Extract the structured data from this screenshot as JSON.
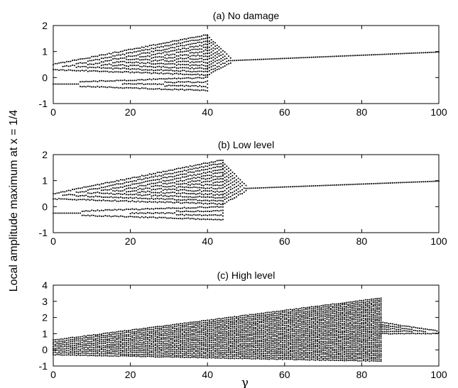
{
  "figure": {
    "ylabel": "Local amplitude maximum at x = 1/4",
    "xlabel": "γ"
  },
  "chart_data": [
    {
      "type": "scatter",
      "title": "(a) No damage",
      "xlim": [
        0,
        100
      ],
      "ylim": [
        -1,
        2
      ],
      "xticks": [
        0,
        20,
        40,
        60,
        80,
        100
      ],
      "yticks": [
        -1,
        0,
        1,
        2
      ],
      "grid": false,
      "legend": "none",
      "regions": [
        {
          "x_from": 0,
          "x_to": 40,
          "upper_from": [
            0.3,
            0.5
          ],
          "upper_to": [
            0.1,
            1.65
          ],
          "lower_from": [
            -0.3,
            -0.2
          ],
          "lower_to": [
            -0.5,
            0.0
          ]
        },
        {
          "x_from": 40,
          "x_to": 46,
          "upper_from": [
            0.1,
            1.6
          ],
          "upper_to": [
            0.55,
            0.75
          ]
        },
        {
          "x_from": 46,
          "x_to": 100,
          "upper_from": [
            0.65,
            0.65
          ],
          "upper_to": [
            0.98,
            0.98
          ]
        }
      ]
    },
    {
      "type": "scatter",
      "title": "(b) Low level",
      "xlim": [
        0,
        100
      ],
      "ylim": [
        -1,
        2
      ],
      "xticks": [
        0,
        20,
        40,
        60,
        80,
        100
      ],
      "yticks": [
        -1,
        0,
        1,
        2
      ],
      "grid": false,
      "legend": "none",
      "regions": [
        {
          "x_from": 0,
          "x_to": 44,
          "upper_from": [
            0.3,
            0.5
          ],
          "upper_to": [
            0.1,
            1.8
          ],
          "lower_from": [
            -0.3,
            -0.2
          ],
          "lower_to": [
            -0.5,
            0.0
          ]
        },
        {
          "x_from": 44,
          "x_to": 50,
          "upper_from": [
            0.1,
            1.7
          ],
          "upper_to": [
            0.6,
            0.8
          ]
        },
        {
          "x_from": 50,
          "x_to": 100,
          "upper_from": [
            0.7,
            0.7
          ],
          "upper_to": [
            0.98,
            0.98
          ]
        }
      ]
    },
    {
      "type": "scatter",
      "title": "(c) High level",
      "xlim": [
        0,
        100
      ],
      "ylim": [
        -1,
        4
      ],
      "xticks": [
        0,
        20,
        40,
        60,
        80,
        100
      ],
      "yticks": [
        -1,
        0,
        1,
        2,
        3,
        4
      ],
      "grid": false,
      "legend": "none",
      "regions": [
        {
          "x_from": 0,
          "x_to": 85,
          "upper_from": [
            -0.3,
            0.6
          ],
          "upper_to": [
            -0.7,
            3.2
          ]
        },
        {
          "x_from": 85,
          "x_to": 100,
          "upper_from": [
            1.0,
            1.7
          ],
          "upper_to": [
            1.0,
            1.15
          ]
        }
      ]
    }
  ]
}
